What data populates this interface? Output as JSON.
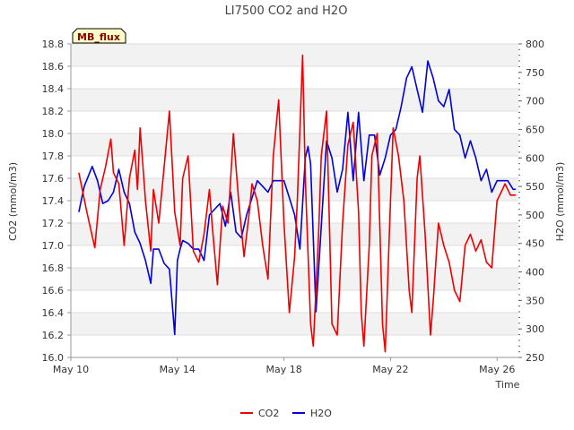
{
  "chart_data": {
    "type": "line",
    "title": "LI7500 CO2 and H2O",
    "tag": "MB_flux",
    "xlabel": "Time",
    "ylabel_left": "CO2 (mmol/m3)",
    "ylabel_right": "H2O (mmol/m3)",
    "x_unit": "day of May",
    "xlim": [
      10.0,
      26.8
    ],
    "ylim_left": [
      16.0,
      18.8
    ],
    "ylim_right": [
      250,
      800
    ],
    "x_ticks": [
      {
        "value": 10,
        "label": "May 10"
      },
      {
        "value": 14,
        "label": "May 14"
      },
      {
        "value": 18,
        "label": "May 18"
      },
      {
        "value": 22,
        "label": "May 22"
      },
      {
        "value": 26,
        "label": "May 26"
      }
    ],
    "y_ticks_left": [
      "16.0",
      "16.2",
      "16.4",
      "16.6",
      "16.8",
      "17.0",
      "17.2",
      "17.4",
      "17.6",
      "17.8",
      "18.0",
      "18.2",
      "18.4",
      "18.6",
      "18.8"
    ],
    "y_ticks_right": [
      "250",
      "300",
      "350",
      "400",
      "450",
      "500",
      "550",
      "600",
      "650",
      "700",
      "750",
      "800"
    ],
    "grid": "horizontal bands",
    "legend_position": "bottom-center",
    "series": [
      {
        "name": "CO2",
        "axis": "left",
        "color": "#ee0000",
        "x": [
          10.3,
          10.6,
          10.9,
          11.1,
          11.3,
          11.5,
          11.6,
          11.8,
          12.0,
          12.2,
          12.4,
          12.5,
          12.6,
          12.8,
          13.0,
          13.1,
          13.3,
          13.5,
          13.7,
          13.9,
          14.1,
          14.2,
          14.4,
          14.6,
          14.8,
          15.0,
          15.2,
          15.3,
          15.5,
          15.7,
          15.9,
          16.1,
          16.3,
          16.5,
          16.7,
          16.8,
          17.0,
          17.2,
          17.4,
          17.6,
          17.8,
          18.0,
          18.2,
          18.4,
          18.5,
          18.7,
          18.8,
          19.0,
          19.1,
          19.3,
          19.4,
          19.6,
          19.8,
          20.0,
          20.2,
          20.4,
          20.6,
          20.8,
          20.9,
          21.0,
          21.2,
          21.3,
          21.5,
          21.7,
          21.8,
          22.0,
          22.1,
          22.3,
          22.5,
          22.7,
          22.8,
          23.0,
          23.1,
          23.3,
          23.5,
          23.6,
          23.8,
          24.0,
          24.2,
          24.4,
          24.6,
          24.8,
          25.0,
          25.2,
          25.4,
          25.6,
          25.8,
          26.0,
          26.2,
          26.3,
          26.5,
          26.7
        ],
        "values": [
          17.65,
          17.3,
          16.98,
          17.5,
          17.7,
          17.95,
          17.65,
          17.55,
          17.0,
          17.6,
          17.85,
          17.5,
          18.05,
          17.4,
          16.95,
          17.5,
          17.2,
          17.7,
          18.2,
          17.3,
          17.0,
          17.6,
          17.8,
          16.95,
          16.85,
          17.1,
          17.5,
          17.2,
          16.65,
          17.35,
          17.2,
          18.0,
          17.4,
          16.9,
          17.3,
          17.55,
          17.4,
          17.0,
          16.7,
          17.8,
          18.3,
          17.2,
          16.4,
          16.9,
          17.4,
          18.7,
          17.6,
          16.3,
          16.1,
          17.1,
          17.8,
          18.2,
          16.3,
          16.2,
          17.2,
          17.9,
          18.1,
          17.3,
          16.4,
          16.1,
          17.0,
          17.8,
          18.0,
          16.3,
          16.05,
          17.4,
          18.05,
          17.8,
          17.4,
          16.6,
          16.4,
          17.6,
          17.8,
          17.1,
          16.2,
          16.5,
          17.2,
          17.0,
          16.85,
          16.6,
          16.5,
          17.0,
          17.1,
          16.95,
          17.05,
          16.85,
          16.8,
          17.4,
          17.5,
          17.55,
          17.45,
          17.45
        ]
      },
      {
        "name": "H2O",
        "axis": "right",
        "color": "#0000dd",
        "x": [
          10.3,
          10.5,
          10.8,
          11.0,
          11.2,
          11.4,
          11.6,
          11.8,
          12.0,
          12.2,
          12.4,
          12.6,
          12.8,
          13.0,
          13.1,
          13.3,
          13.5,
          13.7,
          13.9,
          14.0,
          14.1,
          14.2,
          14.4,
          14.6,
          14.8,
          15.0,
          15.2,
          15.4,
          15.6,
          15.8,
          16.0,
          16.2,
          16.4,
          16.6,
          16.8,
          17.0,
          17.2,
          17.4,
          17.6,
          17.8,
          18.0,
          18.2,
          18.4,
          18.6,
          18.8,
          18.9,
          19.0,
          19.2,
          19.4,
          19.6,
          19.8,
          20.0,
          20.2,
          20.4,
          20.6,
          20.8,
          21.0,
          21.2,
          21.4,
          21.6,
          21.8,
          22.0,
          22.2,
          22.4,
          22.6,
          22.8,
          23.0,
          23.2,
          23.4,
          23.6,
          23.8,
          24.0,
          24.2,
          24.4,
          24.6,
          24.8,
          25.0,
          25.2,
          25.4,
          25.6,
          25.8,
          26.0,
          26.2,
          26.4,
          26.6,
          26.7
        ],
        "values": [
          505,
          550,
          585,
          560,
          520,
          525,
          540,
          580,
          540,
          520,
          470,
          450,
          420,
          380,
          440,
          440,
          415,
          405,
          290,
          420,
          440,
          455,
          450,
          440,
          440,
          420,
          500,
          510,
          520,
          480,
          540,
          470,
          460,
          500,
          530,
          560,
          550,
          540,
          560,
          560,
          560,
          530,
          500,
          440,
          600,
          620,
          590,
          330,
          480,
          630,
          600,
          540,
          580,
          680,
          560,
          680,
          560,
          640,
          640,
          570,
          600,
          640,
          650,
          690,
          740,
          760,
          720,
          680,
          770,
          740,
          700,
          690,
          720,
          650,
          640,
          600,
          630,
          600,
          560,
          580,
          540,
          560,
          560,
          560,
          545,
          545
        ]
      }
    ]
  },
  "legend": {
    "items": [
      {
        "label": "CO2",
        "color": "#ee0000"
      },
      {
        "label": "H2O",
        "color": "#0000dd"
      }
    ]
  }
}
